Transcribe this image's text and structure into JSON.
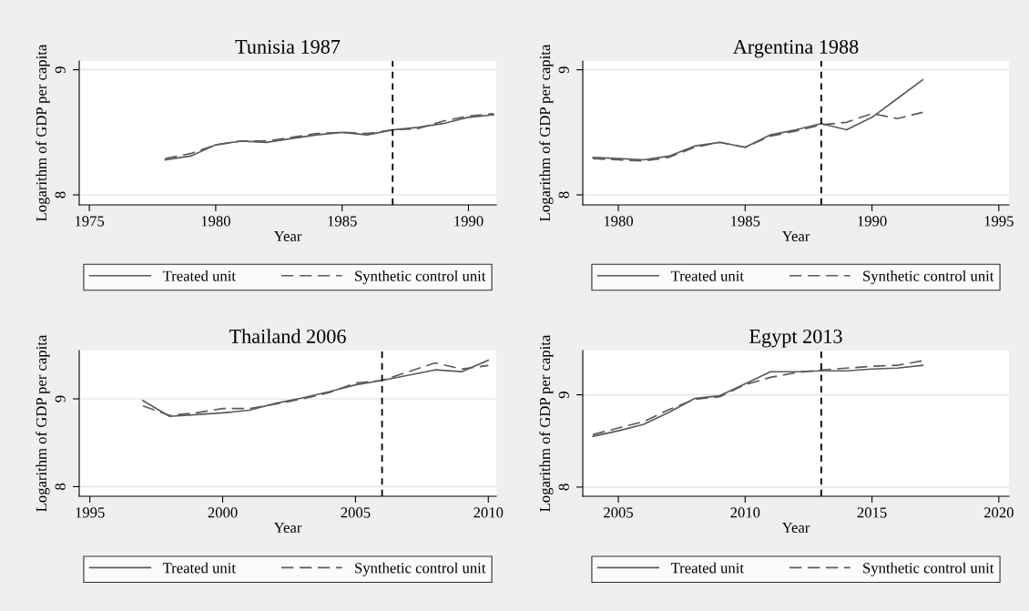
{
  "chart_data": [
    {
      "type": "line",
      "title": "Tunisia 1987",
      "xlabel": "Year",
      "ylabel": "Logarithm of GDP per capita",
      "grid": "y",
      "legend": "bottom",
      "x": [
        1978,
        1979,
        1980,
        1981,
        1982,
        1983,
        1984,
        1985,
        1986,
        1987,
        1988,
        1989,
        1990,
        1991
      ],
      "series": [
        {
          "name": "Treated unit",
          "color": "#5a5a5a",
          "line_style": "solid",
          "values": [
            8.28,
            8.31,
            8.4,
            8.43,
            8.42,
            8.45,
            8.48,
            8.5,
            8.48,
            8.52,
            8.54,
            8.57,
            8.62,
            8.64
          ]
        },
        {
          "name": "Synthetic control unit",
          "color": "#5a5a5a",
          "line_style": "dashed",
          "values": [
            8.29,
            8.33,
            8.4,
            8.43,
            8.43,
            8.46,
            8.49,
            8.5,
            8.49,
            8.52,
            8.53,
            8.59,
            8.63,
            8.65
          ]
        }
      ],
      "xlim": [
        1974.6,
        1991.1
      ],
      "xticks": [
        1975,
        1980,
        1985,
        1990
      ],
      "ylim": [
        7.92,
        9.07
      ],
      "yticks": [
        8,
        9
      ],
      "ref_lines": [
        {
          "axis": "x",
          "value": 1987,
          "color": "#000000",
          "line_style": "dashed"
        }
      ]
    },
    {
      "type": "line",
      "title": "Argentina 1988",
      "xlabel": "Year",
      "ylabel": "Logarithm of GDP per capita",
      "grid": "y",
      "legend": "bottom",
      "x": [
        1979,
        1980,
        1981,
        1982,
        1983,
        1984,
        1985,
        1986,
        1987,
        1988,
        1989,
        1990,
        1991,
        1992
      ],
      "series": [
        {
          "name": "Treated unit",
          "color": "#5a5a5a",
          "line_style": "solid",
          "values": [
            8.3,
            8.29,
            8.28,
            8.31,
            8.39,
            8.42,
            8.38,
            8.48,
            8.52,
            8.57,
            8.52,
            8.62,
            8.77,
            8.92
          ]
        },
        {
          "name": "Synthetic control unit",
          "color": "#5a5a5a",
          "line_style": "dashed",
          "values": [
            8.29,
            8.28,
            8.27,
            8.3,
            8.38,
            8.42,
            8.38,
            8.47,
            8.51,
            8.56,
            8.58,
            8.65,
            8.61,
            8.66
          ]
        }
      ],
      "xlim": [
        1978.6,
        1995.4
      ],
      "xticks": [
        1980,
        1985,
        1990,
        1995
      ],
      "ylim": [
        7.92,
        9.07
      ],
      "yticks": [
        8,
        9
      ],
      "ref_lines": [
        {
          "axis": "x",
          "value": 1988,
          "color": "#000000",
          "line_style": "dashed"
        }
      ]
    },
    {
      "type": "line",
      "title": "Thailand 2006",
      "xlabel": "Year",
      "ylabel": "Logarithm of GDP per capita",
      "grid": "y",
      "legend": "bottom",
      "x": [
        1997,
        1998,
        1999,
        2000,
        2001,
        2002,
        2003,
        2004,
        2005,
        2006,
        2007,
        2008,
        2009,
        2010
      ],
      "series": [
        {
          "name": "Treated unit",
          "color": "#5a5a5a",
          "line_style": "solid",
          "values": [
            8.98,
            8.8,
            8.82,
            8.84,
            8.87,
            8.95,
            9.01,
            9.08,
            9.16,
            9.21,
            9.27,
            9.33,
            9.31,
            9.44
          ]
        },
        {
          "name": "Synthetic control unit",
          "color": "#5a5a5a",
          "line_style": "dashed",
          "values": [
            8.92,
            8.81,
            8.84,
            8.89,
            8.89,
            8.94,
            9.0,
            9.07,
            9.18,
            9.21,
            9.31,
            9.41,
            9.34,
            9.38
          ]
        }
      ],
      "xlim": [
        1994.6,
        2010.3
      ],
      "xticks": [
        1995,
        2000,
        2005,
        2010
      ],
      "ylim": [
        7.89,
        9.55
      ],
      "yticks": [
        8,
        9
      ],
      "ref_lines": [
        {
          "axis": "x",
          "value": 2006,
          "color": "#000000",
          "line_style": "dashed"
        }
      ]
    },
    {
      "type": "line",
      "title": "Egypt 2013",
      "xlabel": "Year",
      "ylabel": "Logarithm of GDP per capita",
      "grid": "y",
      "legend": "bottom",
      "x": [
        2004,
        2005,
        2006,
        2007,
        2008,
        2009,
        2010,
        2011,
        2012,
        2013,
        2014,
        2015,
        2016,
        2017
      ],
      "series": [
        {
          "name": "Treated unit",
          "color": "#5a5a5a",
          "line_style": "solid",
          "values": [
            8.55,
            8.61,
            8.68,
            8.81,
            8.96,
            8.99,
            9.12,
            9.25,
            9.25,
            9.26,
            9.26,
            9.28,
            9.29,
            9.32
          ]
        },
        {
          "name": "Synthetic control unit",
          "color": "#5a5a5a",
          "line_style": "dashed",
          "values": [
            8.57,
            8.64,
            8.71,
            8.84,
            8.95,
            8.98,
            9.11,
            9.19,
            9.24,
            9.27,
            9.29,
            9.31,
            9.32,
            9.37
          ]
        }
      ],
      "xlim": [
        2003.6,
        2020.4
      ],
      "xticks": [
        2005,
        2010,
        2015,
        2020
      ],
      "ylim": [
        7.9,
        9.48
      ],
      "yticks": [
        8,
        9
      ],
      "ref_lines": [
        {
          "axis": "x",
          "value": 2013,
          "color": "#000000",
          "line_style": "dashed"
        }
      ]
    }
  ]
}
